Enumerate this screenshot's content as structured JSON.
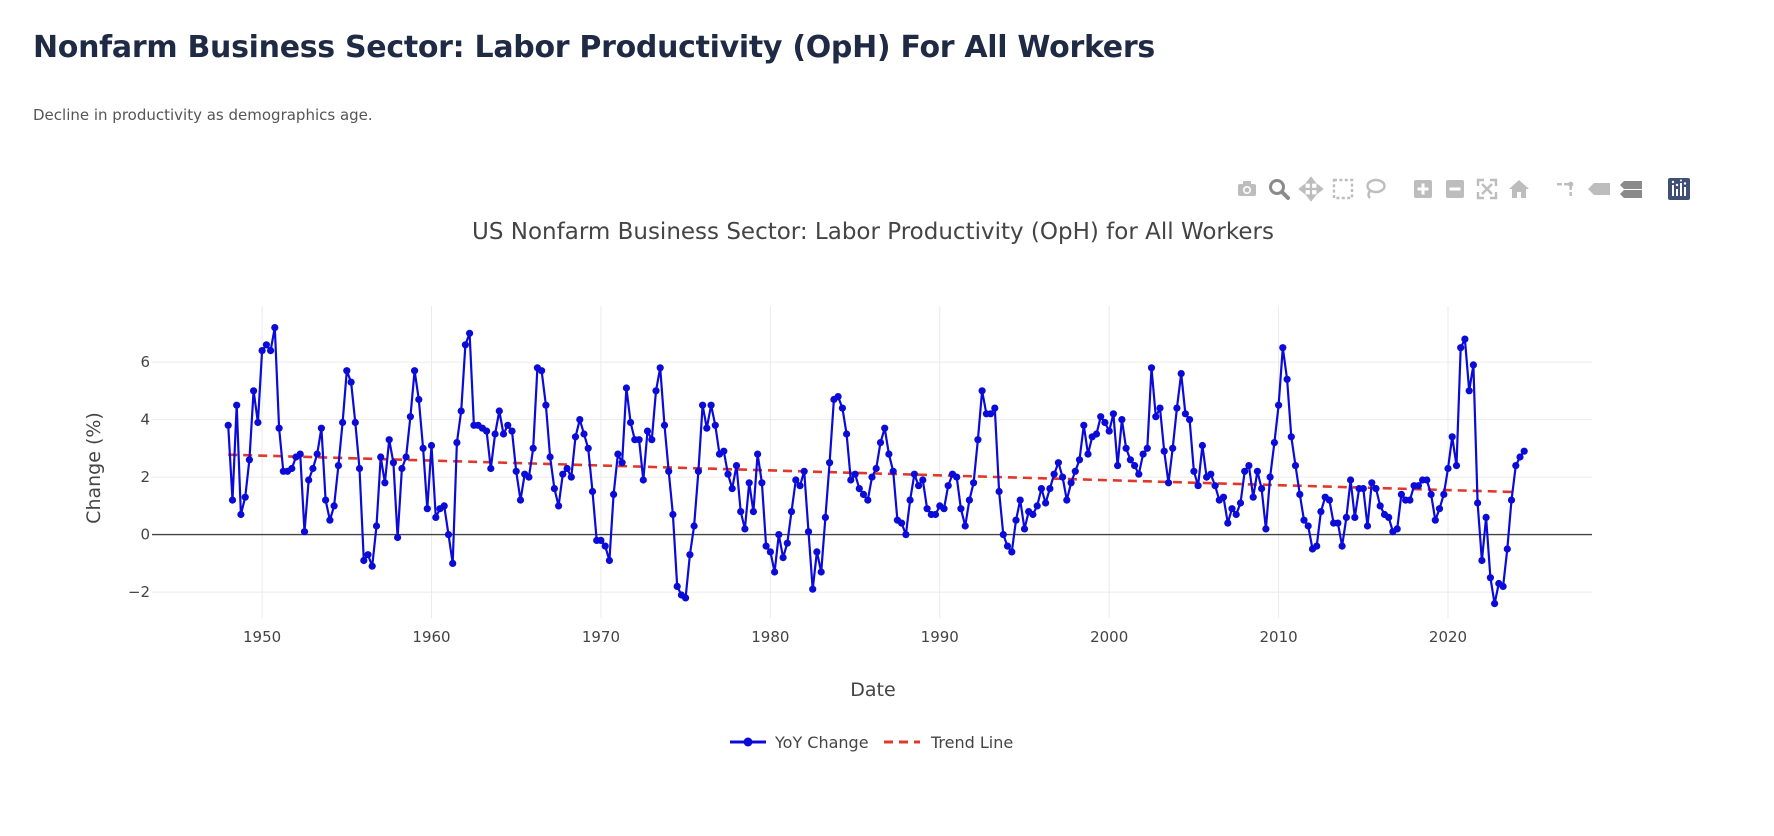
{
  "page": {
    "title": "Nonfarm Business Sector: Labor Productivity (OpH) For All Workers",
    "subtitle": "Decline in productivity as demographics age."
  },
  "modebar": {
    "buttons": [
      {
        "name": "camera-icon"
      },
      {
        "name": "zoom-icon"
      },
      {
        "name": "pan-icon"
      },
      {
        "name": "box-select-icon"
      },
      {
        "name": "lasso-select-icon"
      },
      {
        "name": "zoom-in-icon"
      },
      {
        "name": "zoom-out-icon"
      },
      {
        "name": "autoscale-icon"
      },
      {
        "name": "reset-axes-home-icon"
      },
      {
        "name": "spike-lines-icon"
      },
      {
        "name": "hover-closest-icon"
      },
      {
        "name": "hover-compare-icon"
      },
      {
        "name": "plotly-logo-icon"
      }
    ],
    "colors": {
      "inactive": "#bdbdbd",
      "active": "#8a8a8a",
      "logo": "#3f4f75"
    }
  },
  "chart_data": {
    "type": "line",
    "title": "US Nonfarm Business Sector: Labor Productivity (OpH) for All Workers",
    "xlabel": "Date",
    "ylabel": "Change (%)",
    "xlim": [
      1943.5,
      2028.5
    ],
    "ylim": [
      -2.9,
      7.95
    ],
    "xticks": [
      1950,
      1960,
      1970,
      1980,
      1990,
      2000,
      2010,
      2020
    ],
    "yticks": [
      -2,
      0,
      2,
      4,
      6
    ],
    "grid": true,
    "zero_line": true,
    "legend": {
      "placement": "bottom-center",
      "orientation": "horizontal"
    },
    "series": [
      {
        "name": "YoY Change",
        "mode": "lines+markers",
        "color": "#0b0bd9",
        "x_start": 1948.0,
        "x_step": 0.25,
        "values": [
          3.8,
          1.2,
          4.5,
          0.7,
          1.3,
          2.6,
          5.0,
          3.9,
          6.4,
          6.6,
          6.4,
          7.2,
          3.7,
          2.2,
          2.2,
          2.3,
          2.7,
          2.8,
          0.1,
          1.9,
          2.3,
          2.8,
          3.7,
          1.2,
          0.5,
          1.0,
          2.4,
          3.9,
          5.7,
          5.3,
          3.9,
          2.3,
          -0.9,
          -0.7,
          -1.1,
          0.3,
          2.7,
          1.8,
          3.3,
          2.5,
          -0.1,
          2.3,
          2.7,
          4.1,
          5.7,
          4.7,
          3.0,
          0.9,
          3.1,
          0.6,
          0.9,
          1.0,
          0.0,
          -1.0,
          3.2,
          4.3,
          6.6,
          7.0,
          3.8,
          3.8,
          3.7,
          3.6,
          2.3,
          3.5,
          4.3,
          3.5,
          3.8,
          3.6,
          2.2,
          1.2,
          2.1,
          2.0,
          3.0,
          5.8,
          5.7,
          4.5,
          2.7,
          1.6,
          1.0,
          2.1,
          2.3,
          2.0,
          3.4,
          4.0,
          3.5,
          3.0,
          1.5,
          -0.2,
          -0.2,
          -0.4,
          -0.9,
          1.4,
          2.8,
          2.5,
          5.1,
          3.9,
          3.3,
          3.3,
          1.9,
          3.6,
          3.3,
          5.0,
          5.8,
          3.8,
          2.2,
          0.7,
          -1.8,
          -2.1,
          -2.2,
          -0.7,
          0.3,
          2.2,
          4.5,
          3.7,
          4.5,
          3.8,
          2.8,
          2.9,
          2.1,
          1.6,
          2.4,
          0.8,
          0.2,
          1.8,
          0.8,
          2.8,
          1.8,
          -0.4,
          -0.6,
          -1.3,
          0.0,
          -0.8,
          -0.3,
          0.8,
          1.9,
          1.7,
          2.2,
          0.1,
          -1.9,
          -0.6,
          -1.3,
          0.6,
          2.5,
          4.7,
          4.8,
          4.4,
          3.5,
          1.9,
          2.1,
          1.6,
          1.4,
          1.2,
          2.0,
          2.3,
          3.2,
          3.7,
          2.8,
          2.2,
          0.5,
          0.4,
          0.0,
          1.2,
          2.1,
          1.7,
          1.9,
          0.9,
          0.7,
          0.7,
          1.0,
          0.9,
          1.7,
          2.1,
          2.0,
          0.9,
          0.3,
          1.2,
          1.8,
          3.3,
          5.0,
          4.2,
          4.2,
          4.4,
          1.5,
          0.0,
          -0.4,
          -0.6,
          0.5,
          1.2,
          0.2,
          0.8,
          0.7,
          1.0,
          1.6,
          1.1,
          1.6,
          2.1,
          2.5,
          2.0,
          1.2,
          1.8,
          2.2,
          2.6,
          3.8,
          2.8,
          3.4,
          3.5,
          4.1,
          3.9,
          3.6,
          4.2,
          2.4,
          4.0,
          3.0,
          2.6,
          2.4,
          2.1,
          2.8,
          3.0,
          5.8,
          4.1,
          4.4,
          2.9,
          1.8,
          3.0,
          4.4,
          5.6,
          4.2,
          4.0,
          2.2,
          1.7,
          3.1,
          2.0,
          2.1,
          1.7,
          1.2,
          1.3,
          0.4,
          0.9,
          0.7,
          1.1,
          2.2,
          2.4,
          1.3,
          2.2,
          1.6,
          0.2,
          2.0,
          3.2,
          4.5,
          6.5,
          5.4,
          3.4,
          2.4,
          1.4,
          0.5,
          0.3,
          -0.5,
          -0.4,
          0.8,
          1.3,
          1.2,
          0.4,
          0.4,
          -0.4,
          0.6,
          1.9,
          0.6,
          1.6,
          1.6,
          0.3,
          1.8,
          1.6,
          1.0,
          0.7,
          0.6,
          0.1,
          0.2,
          1.4,
          1.2,
          1.2,
          1.7,
          1.7,
          1.9,
          1.9,
          1.4,
          0.5,
          0.9,
          1.4,
          2.3,
          3.4,
          2.4,
          6.5,
          6.8,
          5.0,
          5.9,
          1.1,
          -0.9,
          0.6,
          -1.5,
          -2.4,
          -1.7,
          -1.8,
          -0.5,
          1.2,
          2.4,
          2.7,
          2.9
        ]
      },
      {
        "name": "Trend Line",
        "mode": "lines",
        "dash": "dash",
        "color": "#e0392b",
        "x": [
          1948.0,
          2024.0
        ],
        "values": [
          2.78,
          1.48
        ]
      }
    ]
  }
}
